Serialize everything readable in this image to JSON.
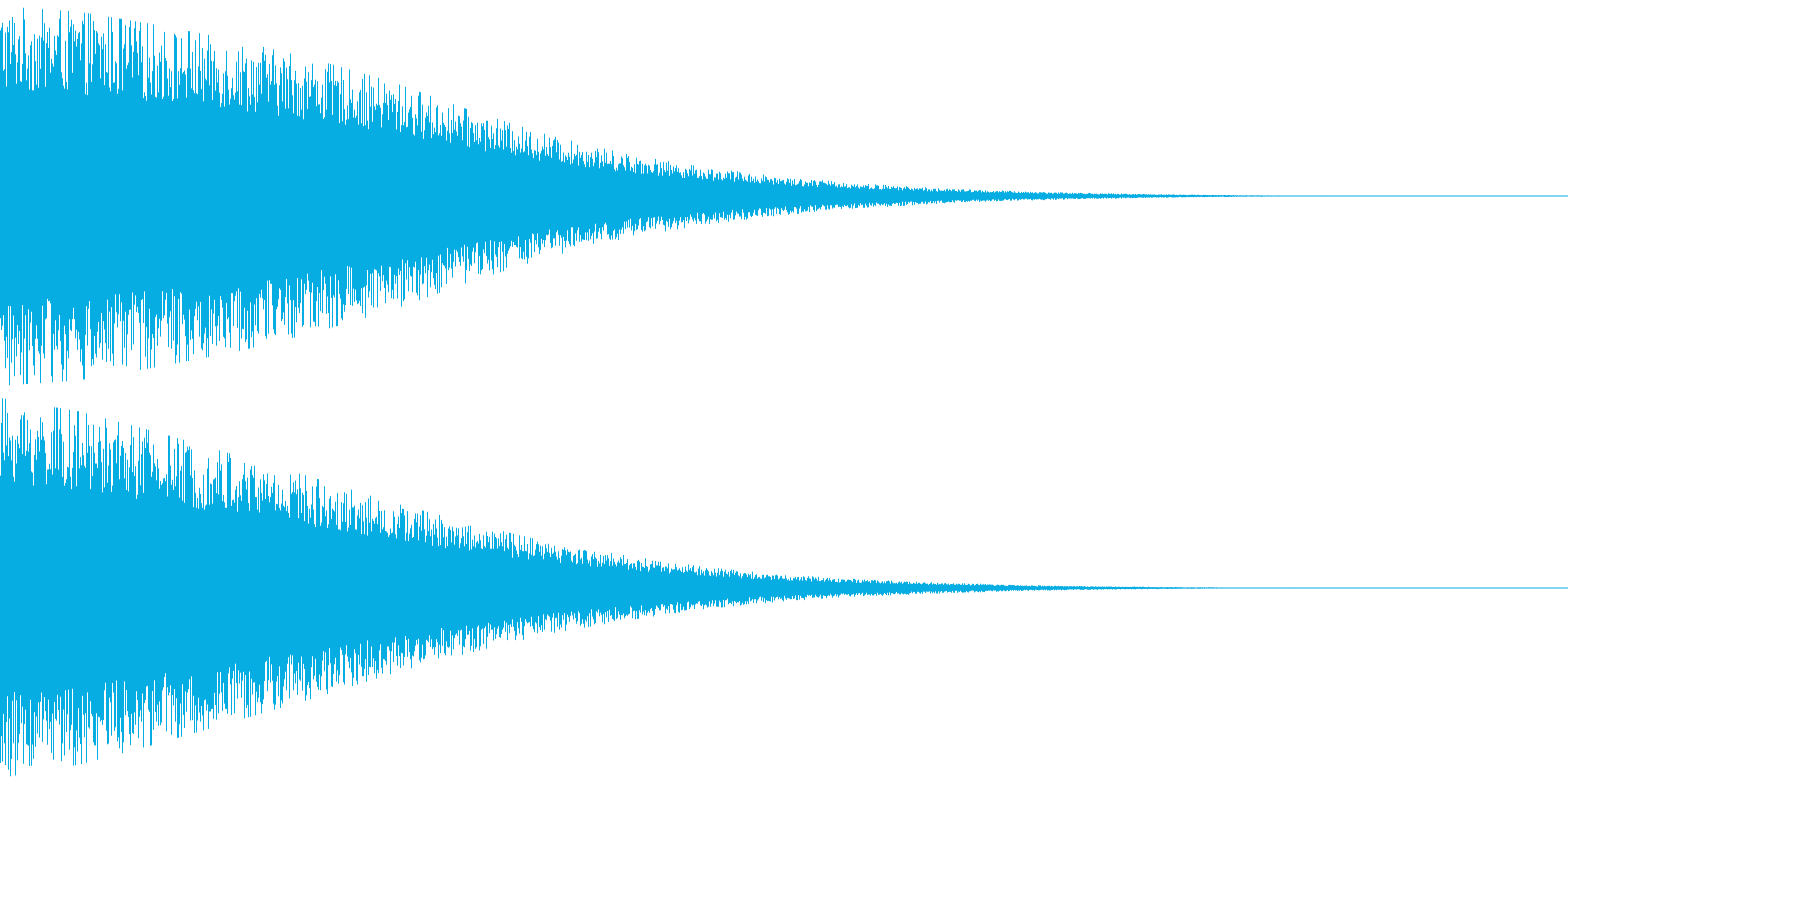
{
  "waveform": {
    "color": "#06ade3",
    "background": "#ffffff",
    "channels": [
      {
        "name": "channel-1",
        "envelope": [
          [
            0.0,
            1.0
          ],
          [
            0.05,
            0.97
          ],
          [
            0.1,
            0.9
          ],
          [
            0.15,
            0.82
          ],
          [
            0.2,
            0.72
          ],
          [
            0.25,
            0.6
          ],
          [
            0.3,
            0.45
          ],
          [
            0.35,
            0.32
          ],
          [
            0.4,
            0.22
          ],
          [
            0.45,
            0.15
          ],
          [
            0.5,
            0.1
          ],
          [
            0.55,
            0.065
          ],
          [
            0.6,
            0.04
          ],
          [
            0.65,
            0.025
          ],
          [
            0.7,
            0.015
          ],
          [
            0.75,
            0.008
          ],
          [
            0.8,
            0.004
          ],
          [
            0.83,
            0.002
          ],
          [
            0.85,
            0.0
          ],
          [
            1.0,
            0.0
          ]
        ]
      },
      {
        "name": "channel-2",
        "envelope": [
          [
            0.0,
            1.0
          ],
          [
            0.05,
            0.93
          ],
          [
            0.1,
            0.82
          ],
          [
            0.15,
            0.7
          ],
          [
            0.2,
            0.58
          ],
          [
            0.25,
            0.45
          ],
          [
            0.3,
            0.34
          ],
          [
            0.35,
            0.24
          ],
          [
            0.4,
            0.17
          ],
          [
            0.45,
            0.11
          ],
          [
            0.5,
            0.07
          ],
          [
            0.55,
            0.045
          ],
          [
            0.6,
            0.028
          ],
          [
            0.65,
            0.016
          ],
          [
            0.7,
            0.009
          ],
          [
            0.75,
            0.005
          ],
          [
            0.8,
            0.002
          ],
          [
            0.83,
            0.0
          ],
          [
            1.0,
            0.0
          ]
        ]
      }
    ]
  }
}
